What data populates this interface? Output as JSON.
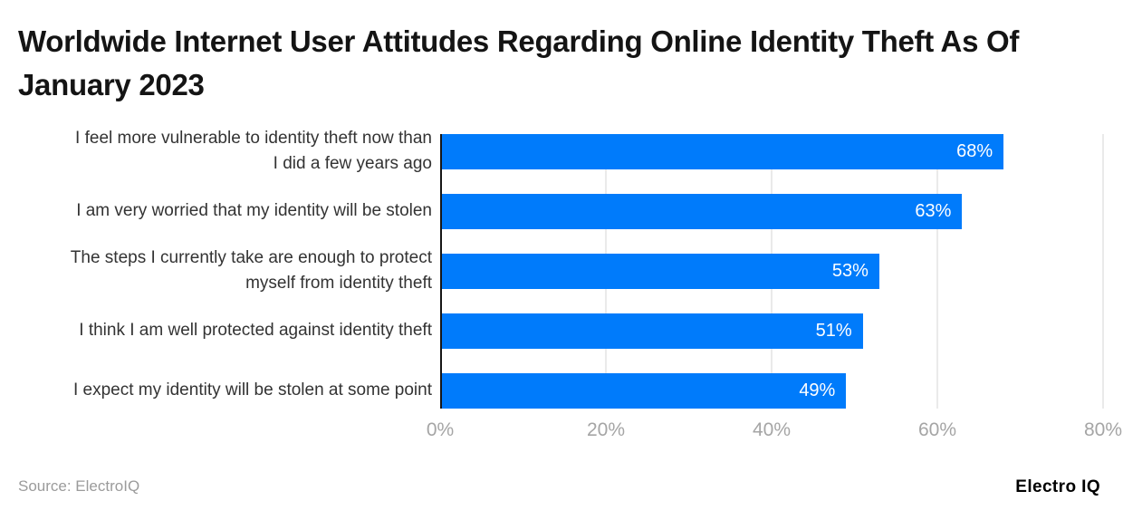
{
  "chart_data": {
    "type": "bar",
    "orientation": "horizontal",
    "title": "Worldwide Internet User Attitudes Regarding Online Identity Theft As Of January 2023",
    "categories": [
      "I feel more vulnerable to identity theft now than I did a few years ago",
      "I am very worried that my identity will be stolen",
      "The steps I currently take are enough to protect myself from identity theft",
      "I think I am well protected against identity theft",
      "I expect my identity will be stolen at some point"
    ],
    "values": [
      68,
      63,
      53,
      51,
      49
    ],
    "value_labels": [
      "68%",
      "63%",
      "53%",
      "51%",
      "49%"
    ],
    "xlabel": "",
    "ylabel": "",
    "xlim": [
      0,
      80
    ],
    "xticks": [
      {
        "value": 0,
        "label": "0%"
      },
      {
        "value": 20,
        "label": "20%"
      },
      {
        "value": 40,
        "label": "40%"
      },
      {
        "value": 60,
        "label": "60%"
      },
      {
        "value": 80,
        "label": "80%"
      }
    ],
    "grid": "vertical",
    "legend": "none"
  },
  "colors": {
    "bar": "#007bfb",
    "axis_line": "#161616",
    "gridline": "#eaeaea",
    "tick_text": "#a5a5a5",
    "category_text": "#333333",
    "value_text": "#ffffff",
    "title_text": "#141414",
    "source_text": "#9b9b9b"
  },
  "footer": {
    "source": "Source: ElectroIQ",
    "brand": "Electro IQ"
  }
}
